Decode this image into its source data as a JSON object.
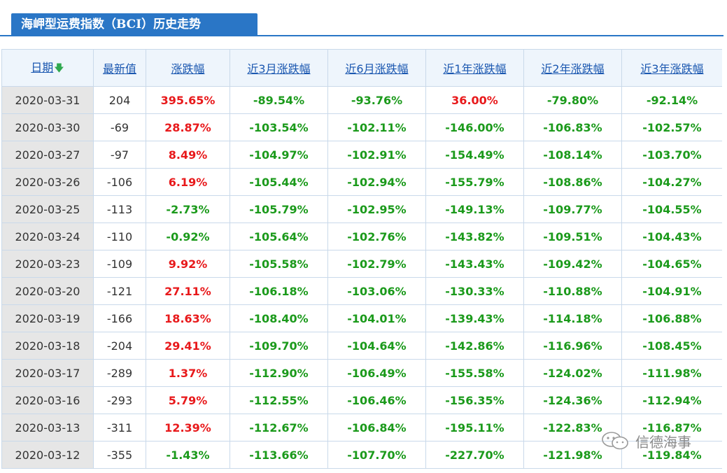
{
  "title": "海岬型运费指数（BCI）历史走势",
  "colors": {
    "accent": "#2a76c6",
    "up": "#e8191b",
    "down": "#1b9a1b"
  },
  "headers": [
    "日期",
    "最新值",
    "涨跌幅",
    "近3月涨跌幅",
    "近6月涨跌幅",
    "近1年涨跌幅",
    "近2年涨跌幅",
    "近3年涨跌幅"
  ],
  "sort_icon": "arrow-down-icon",
  "rows": [
    {
      "date": "2020-03-31",
      "value": "204",
      "chg": "395.65%",
      "m3": "-89.54%",
      "m6": "-93.76%",
      "y1": "36.00%",
      "y2": "-79.80%",
      "y3": "-92.14%"
    },
    {
      "date": "2020-03-30",
      "value": "-69",
      "chg": "28.87%",
      "m3": "-103.54%",
      "m6": "-102.11%",
      "y1": "-146.00%",
      "y2": "-106.83%",
      "y3": "-102.57%"
    },
    {
      "date": "2020-03-27",
      "value": "-97",
      "chg": "8.49%",
      "m3": "-104.97%",
      "m6": "-102.91%",
      "y1": "-154.49%",
      "y2": "-108.14%",
      "y3": "-103.70%"
    },
    {
      "date": "2020-03-26",
      "value": "-106",
      "chg": "6.19%",
      "m3": "-105.44%",
      "m6": "-102.94%",
      "y1": "-155.79%",
      "y2": "-108.86%",
      "y3": "-104.27%"
    },
    {
      "date": "2020-03-25",
      "value": "-113",
      "chg": "-2.73%",
      "m3": "-105.79%",
      "m6": "-102.95%",
      "y1": "-149.13%",
      "y2": "-109.77%",
      "y3": "-104.55%"
    },
    {
      "date": "2020-03-24",
      "value": "-110",
      "chg": "-0.92%",
      "m3": "-105.64%",
      "m6": "-102.76%",
      "y1": "-143.82%",
      "y2": "-109.51%",
      "y3": "-104.43%"
    },
    {
      "date": "2020-03-23",
      "value": "-109",
      "chg": "9.92%",
      "m3": "-105.58%",
      "m6": "-102.79%",
      "y1": "-143.43%",
      "y2": "-109.42%",
      "y3": "-104.65%"
    },
    {
      "date": "2020-03-20",
      "value": "-121",
      "chg": "27.11%",
      "m3": "-106.18%",
      "m6": "-103.06%",
      "y1": "-130.33%",
      "y2": "-110.88%",
      "y3": "-104.91%"
    },
    {
      "date": "2020-03-19",
      "value": "-166",
      "chg": "18.63%",
      "m3": "-108.40%",
      "m6": "-104.01%",
      "y1": "-139.43%",
      "y2": "-114.18%",
      "y3": "-106.88%"
    },
    {
      "date": "2020-03-18",
      "value": "-204",
      "chg": "29.41%",
      "m3": "-109.70%",
      "m6": "-104.64%",
      "y1": "-142.86%",
      "y2": "-116.96%",
      "y3": "-108.45%"
    },
    {
      "date": "2020-03-17",
      "value": "-289",
      "chg": "1.37%",
      "m3": "-112.90%",
      "m6": "-106.49%",
      "y1": "-155.58%",
      "y2": "-124.02%",
      "y3": "-111.98%"
    },
    {
      "date": "2020-03-16",
      "value": "-293",
      "chg": "5.79%",
      "m3": "-112.55%",
      "m6": "-106.46%",
      "y1": "-156.35%",
      "y2": "-124.36%",
      "y3": "-112.94%"
    },
    {
      "date": "2020-03-13",
      "value": "-311",
      "chg": "12.39%",
      "m3": "-112.67%",
      "m6": "-106.84%",
      "y1": "-195.11%",
      "y2": "-122.83%",
      "y3": "-116.87%"
    },
    {
      "date": "2020-03-12",
      "value": "-355",
      "chg": "-1.43%",
      "m3": "-113.66%",
      "m6": "-107.70%",
      "y1": "-227.70%",
      "y2": "-121.98%",
      "y3": "-119.84%"
    }
  ],
  "watermark": {
    "icon": "wechat-icon",
    "text": "信德海事"
  }
}
